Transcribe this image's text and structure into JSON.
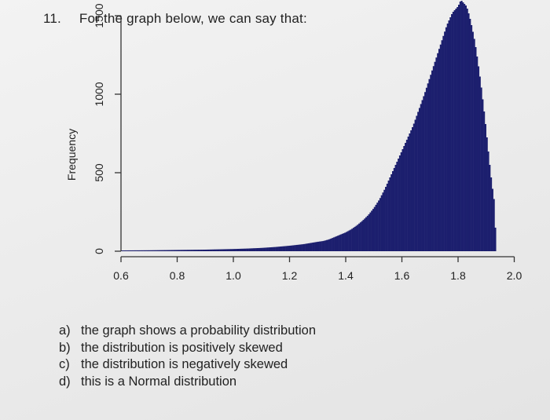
{
  "question": {
    "number": "11.",
    "text": "For the graph below, we can say that:"
  },
  "chart_data": {
    "type": "bar",
    "subtype": "histogram",
    "title": "",
    "xlabel": "",
    "ylabel": "Frequency",
    "xlim": [
      0.55,
      2.02
    ],
    "ylim": [
      0,
      1650
    ],
    "x_ticks": [
      "0.6",
      "0.8",
      "1.0",
      "1.2",
      "1.4",
      "1.6",
      "1.8",
      "2.0"
    ],
    "y_ticks": [
      "0",
      "500",
      "1000",
      "1500"
    ],
    "bar_color": "#1c1f6e",
    "bin_width": 0.005,
    "bins": [
      [
        0.6,
        5
      ],
      [
        0.7,
        6
      ],
      [
        0.8,
        8
      ],
      [
        0.9,
        10
      ],
      [
        1.0,
        14
      ],
      [
        1.05,
        17
      ],
      [
        1.1,
        21
      ],
      [
        1.15,
        27
      ],
      [
        1.2,
        35
      ],
      [
        1.25,
        45
      ],
      [
        1.3,
        60
      ],
      [
        1.32,
        65
      ],
      [
        1.34,
        75
      ],
      [
        1.36,
        90
      ],
      [
        1.38,
        105
      ],
      [
        1.4,
        120
      ],
      [
        1.42,
        140
      ],
      [
        1.44,
        165
      ],
      [
        1.46,
        195
      ],
      [
        1.48,
        230
      ],
      [
        1.5,
        275
      ],
      [
        1.52,
        330
      ],
      [
        1.54,
        400
      ],
      [
        1.56,
        480
      ],
      [
        1.58,
        560
      ],
      [
        1.6,
        640
      ],
      [
        1.62,
        720
      ],
      [
        1.64,
        800
      ],
      [
        1.66,
        900
      ],
      [
        1.68,
        1000
      ],
      [
        1.7,
        1110
      ],
      [
        1.72,
        1220
      ],
      [
        1.74,
        1330
      ],
      [
        1.76,
        1440
      ],
      [
        1.78,
        1520
      ],
      [
        1.8,
        1560
      ],
      [
        1.81,
        1600
      ],
      [
        1.82,
        1580
      ],
      [
        1.83,
        1560
      ],
      [
        1.84,
        1500
      ],
      [
        1.85,
        1420
      ],
      [
        1.86,
        1330
      ],
      [
        1.87,
        1210
      ],
      [
        1.88,
        1080
      ],
      [
        1.89,
        930
      ],
      [
        1.9,
        770
      ],
      [
        1.91,
        590
      ],
      [
        1.92,
        430
      ],
      [
        1.93,
        300
      ],
      [
        1.935,
        0
      ]
    ]
  },
  "options": [
    {
      "letter": "a)",
      "text": "the graph shows a probability distribution"
    },
    {
      "letter": "b)",
      "text": "the distribution is positively skewed"
    },
    {
      "letter": "c)",
      "text": "the distribution is negatively skewed"
    },
    {
      "letter": "d)",
      "text": "this is a Normal distribution"
    }
  ]
}
